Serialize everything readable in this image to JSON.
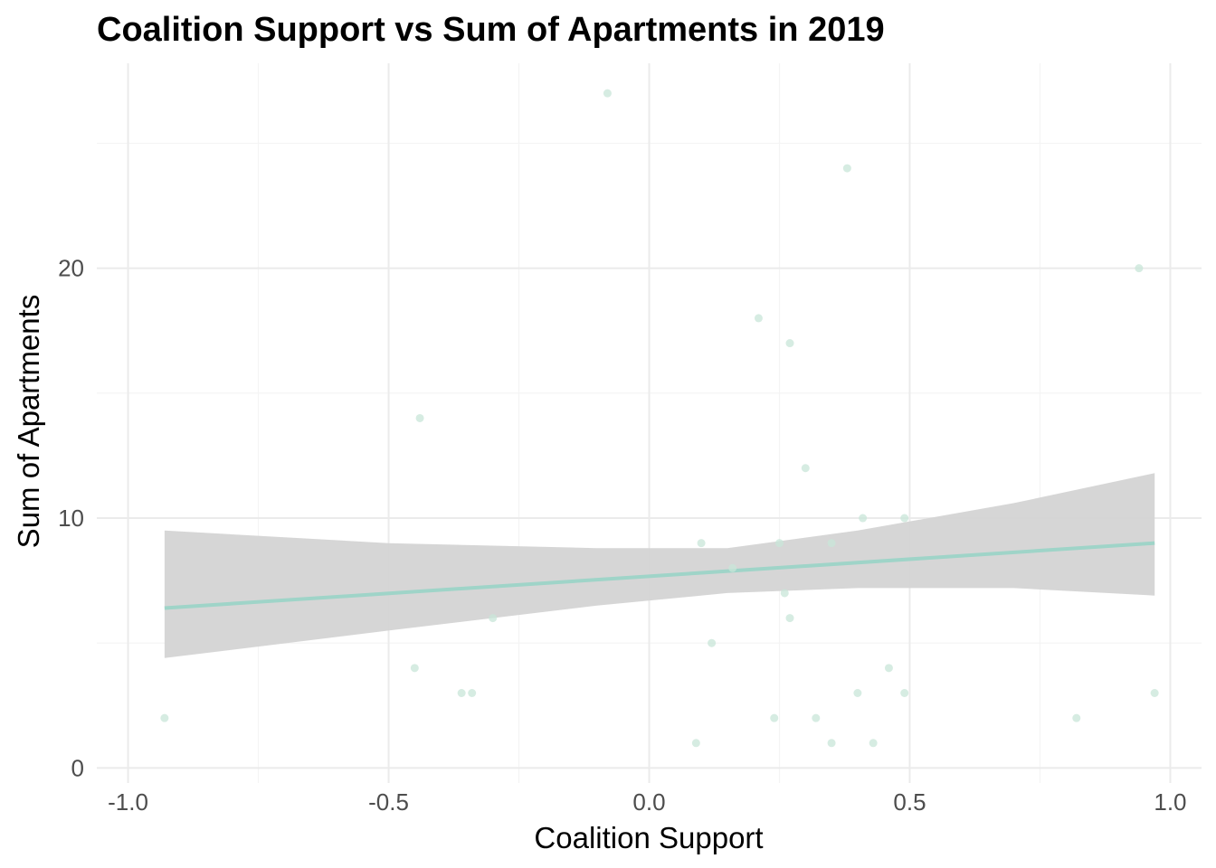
{
  "chart_data": {
    "type": "scatter",
    "title": "Coalition Support vs Sum of Apartments in 2019",
    "xlabel": "Coalition Support",
    "ylabel": "Sum of Apartments",
    "xlim": [
      -1.06,
      1.06
    ],
    "ylim": [
      -0.6,
      28.2
    ],
    "x_ticks": [
      -1.0,
      -0.5,
      0.0,
      0.5,
      1.0
    ],
    "x_tick_labels": [
      "-1.0",
      "-0.5",
      "0.0",
      "0.5",
      "1.0"
    ],
    "y_ticks": [
      0,
      10,
      20
    ],
    "y_tick_labels": [
      "0",
      "10",
      "20"
    ],
    "x_minor_ticks": [
      -0.75,
      -0.25,
      0.25,
      0.75
    ],
    "y_minor_ticks": [
      5,
      15,
      25
    ],
    "grid": true,
    "point_color": "#c8e6d8",
    "line_color": "#9fd4c8",
    "ribbon_color": "#d4d4d4",
    "points": [
      {
        "x": -0.93,
        "y": 2
      },
      {
        "x": -0.45,
        "y": 4
      },
      {
        "x": -0.44,
        "y": 14
      },
      {
        "x": -0.36,
        "y": 3
      },
      {
        "x": -0.34,
        "y": 3
      },
      {
        "x": -0.3,
        "y": 6
      },
      {
        "x": -0.08,
        "y": 27
      },
      {
        "x": 0.09,
        "y": 1
      },
      {
        "x": 0.1,
        "y": 9
      },
      {
        "x": 0.12,
        "y": 5
      },
      {
        "x": 0.16,
        "y": 8
      },
      {
        "x": 0.21,
        "y": 18
      },
      {
        "x": 0.24,
        "y": 2
      },
      {
        "x": 0.25,
        "y": 9
      },
      {
        "x": 0.26,
        "y": 7
      },
      {
        "x": 0.27,
        "y": 6
      },
      {
        "x": 0.27,
        "y": 17
      },
      {
        "x": 0.3,
        "y": 12
      },
      {
        "x": 0.32,
        "y": 2
      },
      {
        "x": 0.35,
        "y": 1
      },
      {
        "x": 0.35,
        "y": 9
      },
      {
        "x": 0.38,
        "y": 24
      },
      {
        "x": 0.4,
        "y": 3
      },
      {
        "x": 0.41,
        "y": 10
      },
      {
        "x": 0.43,
        "y": 1
      },
      {
        "x": 0.46,
        "y": 4
      },
      {
        "x": 0.49,
        "y": 3
      },
      {
        "x": 0.49,
        "y": 10
      },
      {
        "x": 0.82,
        "y": 2
      },
      {
        "x": 0.94,
        "y": 20
      },
      {
        "x": 0.97,
        "y": 3
      }
    ],
    "trend": {
      "x": [
        -0.93,
        0.97
      ],
      "y": [
        6.4,
        9.0
      ]
    },
    "ribbon": {
      "x": [
        -0.93,
        -0.5,
        -0.1,
        0.15,
        0.4,
        0.7,
        0.97
      ],
      "upper": [
        9.5,
        9.0,
        8.8,
        8.8,
        9.5,
        10.6,
        11.8
      ],
      "lower": [
        4.4,
        5.5,
        6.5,
        7.0,
        7.2,
        7.2,
        6.9
      ]
    }
  }
}
